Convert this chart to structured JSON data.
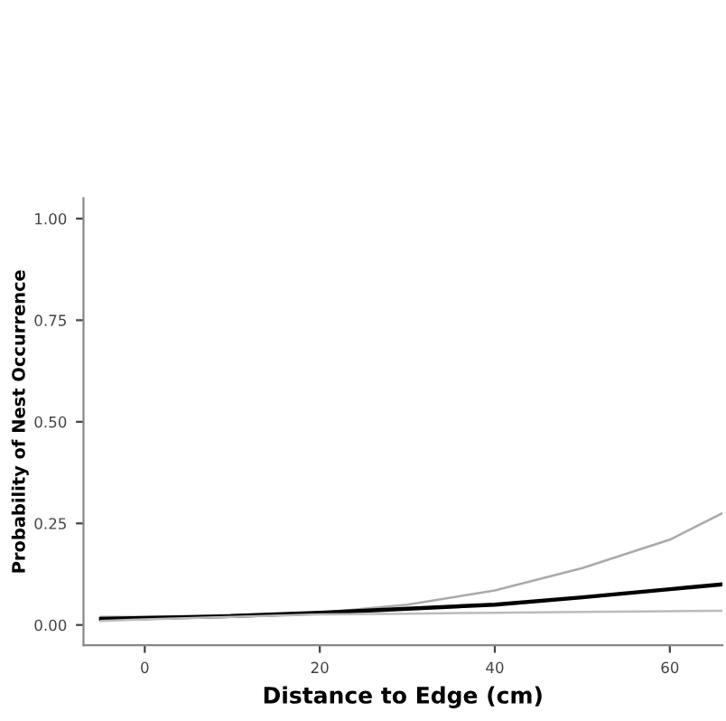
{
  "chart_data": {
    "type": "line",
    "xlabel": "Distance to Edge (cm)",
    "ylabel": "Probability of Nest Occurrence",
    "xlim": [
      -7,
      66
    ],
    "xticks": [
      0,
      20,
      40,
      60
    ],
    "ylim": [
      -0.05,
      1.05
    ],
    "yticks": [
      {
        "value": 1,
        "label": "1.00"
      },
      {
        "value": 0.75,
        "label": "0.75"
      },
      {
        "value": 0.5,
        "label": "0.50"
      },
      {
        "value": 0.25,
        "label": "0.25"
      },
      {
        "value": 0,
        "label": "0.00"
      }
    ],
    "x": [
      -5,
      0,
      10,
      20,
      30,
      40,
      50,
      60,
      66
    ],
    "series": [
      {
        "color": "#aaaaaa",
        "values": [
          0.02,
          0.02,
          0.022,
          0.03,
          0.05,
          0.085,
          0.14,
          0.21,
          0.275
        ]
      },
      {
        "color": "#000000",
        "values": [
          0.015,
          0.017,
          0.022,
          0.03,
          0.04,
          0.05,
          0.068,
          0.088,
          0.1
        ]
      },
      {
        "color": "#bbbbbb",
        "values": [
          0.01,
          0.014,
          0.02,
          0.026,
          0.028,
          0.03,
          0.032,
          0.034,
          0.035
        ]
      }
    ],
    "grid": false,
    "legend": false
  }
}
